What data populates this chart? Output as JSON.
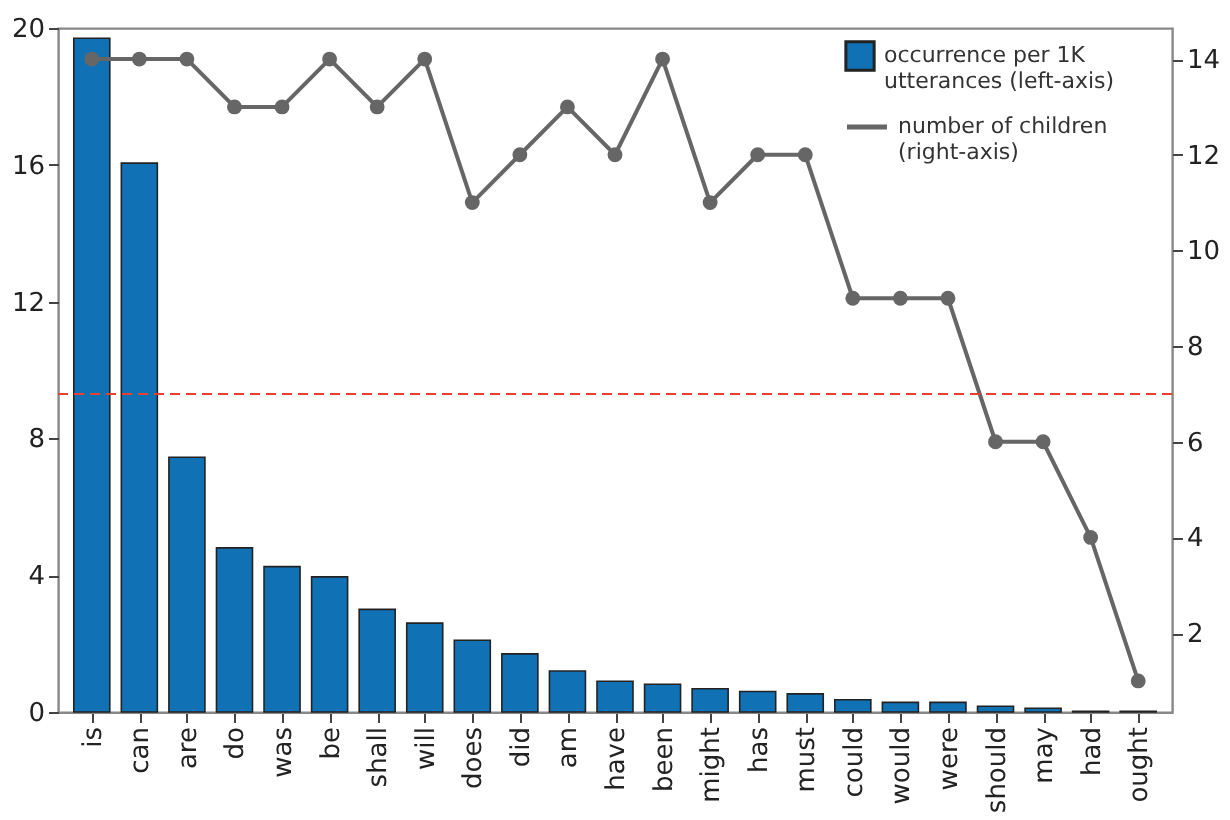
{
  "chart_data": {
    "type": "bar",
    "categories": [
      "is",
      "can",
      "are",
      "do",
      "was",
      "be",
      "shall",
      "will",
      "does",
      "did",
      "am",
      "have",
      "been",
      "might",
      "has",
      "must",
      "could",
      "would",
      "were",
      "should",
      "may",
      "had",
      "ought"
    ],
    "series": [
      {
        "name": "occurrence per 1K utterances (left-axis)",
        "color": "#1071b5",
        "values": [
          19.7,
          16.05,
          7.45,
          4.8,
          4.25,
          3.95,
          3.0,
          2.6,
          2.1,
          1.7,
          1.2,
          0.9,
          0.81,
          0.68,
          0.6,
          0.53,
          0.36,
          0.28,
          0.28,
          0.17,
          0.11,
          0.02,
          0.02
        ]
      },
      {
        "name": "number of children (right-axis)",
        "type": "line",
        "axis": "y2",
        "color": "#666666",
        "marker": "circle",
        "values": [
          14,
          14,
          14,
          13,
          13,
          14,
          13,
          14,
          11,
          12,
          13,
          12,
          14,
          11,
          12,
          12,
          9,
          9,
          9,
          6,
          6,
          4,
          1
        ]
      }
    ],
    "ylim": [
      0,
      20
    ],
    "yticks": [
      0,
      4,
      8,
      12,
      16,
      20
    ],
    "y2lim": [
      0.35,
      14.65
    ],
    "y2ticks": [
      2,
      4,
      6,
      8,
      10,
      12,
      14
    ],
    "ref_lines": [
      {
        "axis": "y2",
        "value": 7,
        "color": "#e8402a",
        "line_style": "dashed"
      }
    ],
    "legend": "top right",
    "grid": false
  }
}
